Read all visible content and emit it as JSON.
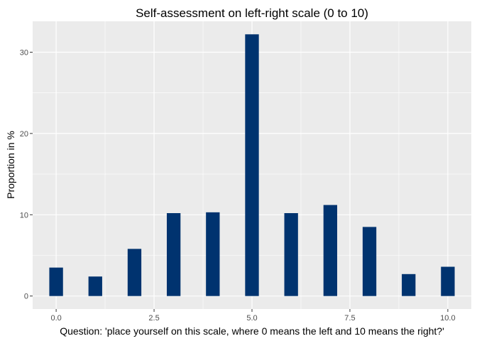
{
  "chart_data": {
    "type": "bar",
    "title": "Self-assessment on left-right scale (0 to 10)",
    "xlabel": "Question: 'place yourself on this scale, where 0 means the left and 10 means the right?'",
    "ylabel": "Proportion in %",
    "x": [
      0,
      1,
      2,
      3,
      4,
      5,
      6,
      7,
      8,
      9,
      10
    ],
    "values": [
      3.5,
      2.4,
      5.8,
      10.2,
      10.3,
      32.2,
      10.2,
      11.2,
      8.5,
      2.7,
      3.6
    ],
    "xlim": [
      -0.6,
      10.6
    ],
    "ylim": [
      -1.6,
      33.8
    ],
    "xticks": [
      0,
      2.5,
      5,
      7.5,
      10
    ],
    "xtick_labels": [
      "0.0",
      "2.5",
      "5.0",
      "7.5",
      "10.0"
    ],
    "yticks": [
      0,
      10,
      20,
      30
    ],
    "ytick_labels": [
      "0",
      "10",
      "20",
      "30"
    ],
    "grid": true,
    "bar_color": "#00336F",
    "panel_color": "#EBEBEB",
    "grid_color": "#FFFFFF"
  }
}
